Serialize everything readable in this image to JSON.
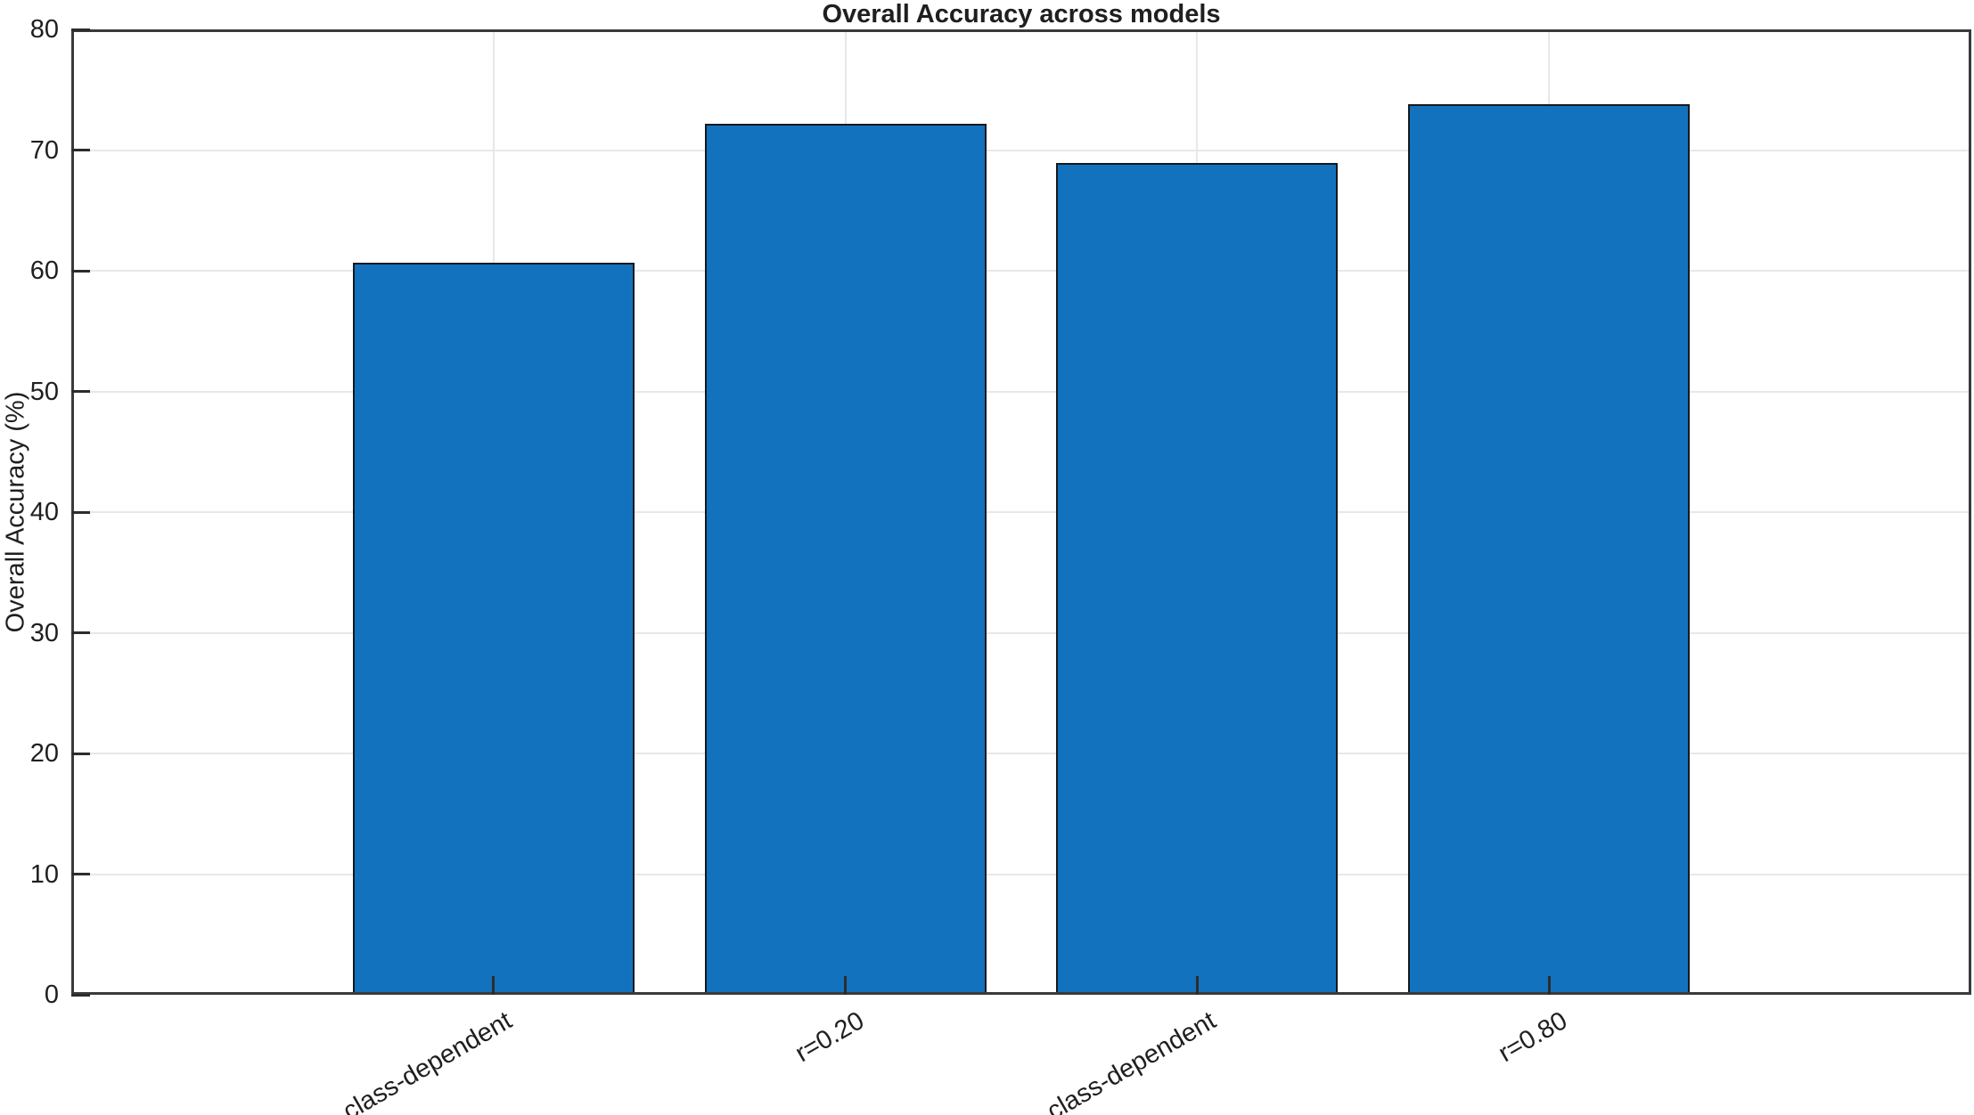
{
  "chart_data": {
    "type": "bar",
    "title": "Overall Accuracy across models",
    "xlabel": "",
    "ylabel": "Overall Accuracy (%)",
    "categories": [
      "class-dependent",
      "r=0.20",
      "class-dependent",
      "r=0.80"
    ],
    "values": [
      60.7,
      72.2,
      68.9,
      73.8
    ],
    "x_positions": [
      1,
      2,
      3,
      4
    ],
    "xlim": [
      -0.2,
      5.2
    ],
    "ylim": [
      0,
      80
    ],
    "yticks": [
      0,
      10,
      20,
      30,
      40,
      50,
      60,
      70,
      80
    ],
    "bar_width_units": 0.8,
    "x_tick_label_rotation_deg": 30,
    "grid": "on",
    "legend": "none",
    "colors": {
      "bar_fill": "#1272BD",
      "bar_edge": "#15191e",
      "grid_line": "#e8e8e8",
      "axis_frame": "#3a3a3a",
      "tick_mark": "#2c2c2c",
      "text": "#1f1f1f",
      "background": "#ffffff"
    }
  }
}
